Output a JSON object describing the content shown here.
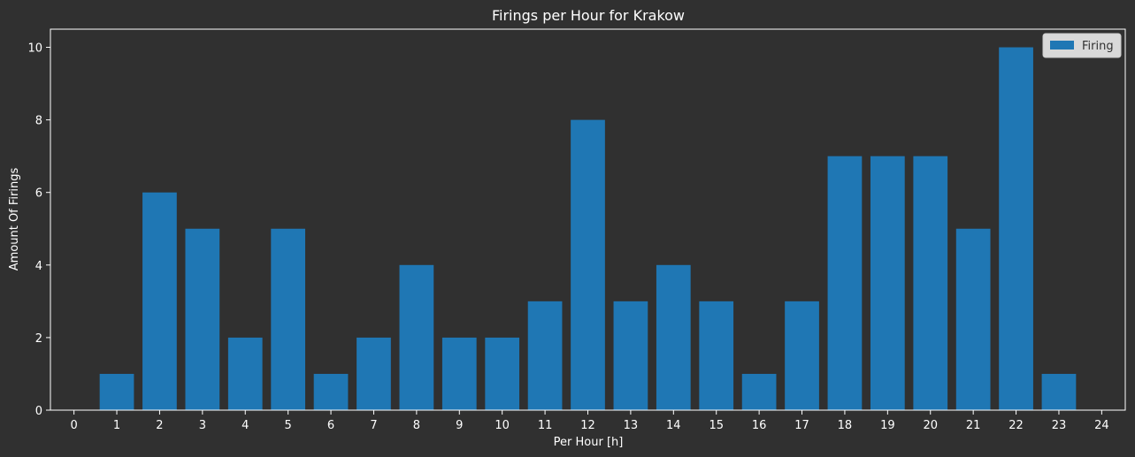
{
  "chart_data": {
    "type": "bar",
    "title": "Firings per Hour for Krakow",
    "xlabel": "Per Hour [h]",
    "ylabel": "Amount Of Firings",
    "x_ticks": [
      0,
      1,
      2,
      3,
      4,
      5,
      6,
      7,
      8,
      9,
      10,
      11,
      12,
      13,
      14,
      15,
      16,
      17,
      18,
      19,
      20,
      21,
      22,
      23,
      24
    ],
    "y_ticks": [
      0,
      2,
      4,
      6,
      8,
      10
    ],
    "xlim": [
      -0.55,
      24.55
    ],
    "ylim": [
      0,
      10.5
    ],
    "grid": false,
    "legend_position": "top-right",
    "series": [
      {
        "name": "Firing",
        "color": "#1f77b4",
        "x": [
          0,
          1,
          2,
          3,
          4,
          5,
          6,
          7,
          8,
          9,
          10,
          11,
          12,
          13,
          14,
          15,
          16,
          17,
          18,
          19,
          20,
          21,
          22,
          23,
          24
        ],
        "values": [
          0,
          1,
          6,
          5,
          2,
          5,
          1,
          2,
          4,
          2,
          2,
          3,
          8,
          3,
          4,
          3,
          1,
          3,
          7,
          7,
          7,
          5,
          10,
          1,
          0
        ]
      }
    ]
  }
}
